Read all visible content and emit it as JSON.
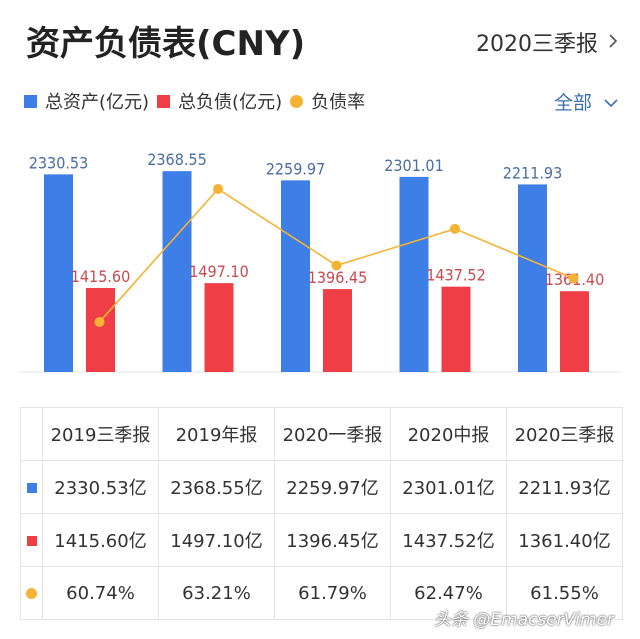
{
  "header": {
    "title": "资产负债表(CNY)",
    "period": "2020三季报",
    "period_icon": "chevron-right-icon",
    "filter": "全部",
    "filter_icon": "chevron-down-icon"
  },
  "legend": [
    {
      "label": "总资产(亿元)",
      "color": "#3d7fe6",
      "shape": "square"
    },
    {
      "label": "总负债(亿元)",
      "color": "#ef3e45",
      "shape": "square"
    },
    {
      "label": "负债率",
      "color": "#f5b335",
      "shape": "circle"
    }
  ],
  "chart_data": {
    "type": "bar",
    "title": "资产负债表(CNY)",
    "categories": [
      "2019三季报",
      "2019年报",
      "2020一季报",
      "2020中报",
      "2020三季报"
    ],
    "series": [
      {
        "name": "总资产(亿元)",
        "type": "bar",
        "color": "#3d7fe6",
        "values": [
          2330.53,
          2368.55,
          2259.97,
          2301.01,
          2211.93
        ],
        "labels": [
          "2330.53",
          "2368.55",
          "2259.97",
          "2301.01",
          "2211.93"
        ]
      },
      {
        "name": "总负债(亿元)",
        "type": "bar",
        "color": "#ef3e45",
        "values": [
          1415.6,
          1497.1,
          1396.45,
          1437.52,
          1361.4
        ],
        "labels": [
          "1415.60",
          "1497.10",
          "1396.45",
          "1437.52",
          "1361.40"
        ]
      },
      {
        "name": "负债率",
        "type": "line",
        "color": "#f5b335",
        "values": [
          60.74,
          63.21,
          61.79,
          62.47,
          61.55
        ]
      }
    ],
    "ylim": [
      0,
      2500
    ],
    "rate_ylim": [
      59.5,
      64.0
    ],
    "grid": false,
    "legend_position": "top-left"
  },
  "table": {
    "headers": [
      "2019三季报",
      "2019年报",
      "2020一季报",
      "2020中报",
      "2020三季报"
    ],
    "rows": [
      {
        "marker": "square",
        "color": "#3d7fe6",
        "cells": [
          "2330.53亿",
          "2368.55亿",
          "2259.97亿",
          "2301.01亿",
          "2211.93亿"
        ]
      },
      {
        "marker": "square",
        "color": "#ef3e45",
        "cells": [
          "1415.60亿",
          "1497.10亿",
          "1396.45亿",
          "1437.52亿",
          "1361.40亿"
        ]
      },
      {
        "marker": "circle",
        "color": "#f5b335",
        "cells": [
          "60.74%",
          "63.21%",
          "61.79%",
          "62.47%",
          "61.55%"
        ]
      }
    ]
  },
  "watermark": "头条 @EmacserVimer"
}
